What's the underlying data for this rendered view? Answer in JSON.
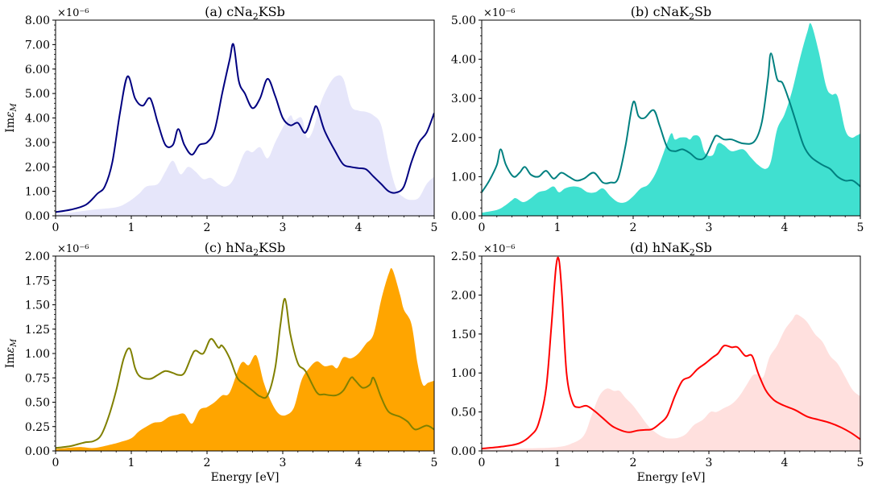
{
  "chart_data": [
    {
      "type": "line",
      "panel": "a",
      "title": "(a) cNa2KSb",
      "title_parts": [
        "(a) cNa",
        "2",
        "KSb"
      ],
      "xlabel": "",
      "ylabel": "Imε_M",
      "ylabel_parts": [
        "Im",
        "ε",
        "M"
      ],
      "offset_text": "×10⁻⁶",
      "xlim": [
        0,
        5
      ],
      "ylim": [
        0,
        8
      ],
      "xticks": [
        0,
        1,
        2,
        3,
        4,
        5
      ],
      "xtick_labels": [
        "0",
        "1",
        "2",
        "3",
        "4",
        "5"
      ],
      "yticks": [
        0,
        1,
        2,
        3,
        4,
        5,
        6,
        7,
        8
      ],
      "ytick_labels": [
        "0.00",
        "1.00",
        "2.00",
        "3.00",
        "4.00",
        "5.00",
        "6.00",
        "7.00",
        "8.00"
      ],
      "line_color": "#000080",
      "fill_color": "#e6e6fa",
      "series": [
        {
          "name": "line",
          "style": "line",
          "x": [
            0,
            0.2,
            0.4,
            0.55,
            0.65,
            0.75,
            0.85,
            0.95,
            1.05,
            1.15,
            1.25,
            1.35,
            1.45,
            1.55,
            1.62,
            1.7,
            1.8,
            1.9,
            2.0,
            2.1,
            2.2,
            2.3,
            2.35,
            2.42,
            2.5,
            2.6,
            2.7,
            2.8,
            2.9,
            3.0,
            3.1,
            3.2,
            3.3,
            3.4,
            3.45,
            3.55,
            3.7,
            3.8,
            3.9,
            4.0,
            4.1,
            4.2,
            4.3,
            4.4,
            4.5,
            4.6,
            4.7,
            4.8,
            4.9,
            5.0
          ],
          "y": [
            0.15,
            0.25,
            0.45,
            0.9,
            1.2,
            2.2,
            4.2,
            5.7,
            4.8,
            4.5,
            4.8,
            3.8,
            2.9,
            2.9,
            3.55,
            2.9,
            2.5,
            2.9,
            3.0,
            3.5,
            5.0,
            6.4,
            7.0,
            5.5,
            5.0,
            4.4,
            4.8,
            5.6,
            4.9,
            4.0,
            3.7,
            3.8,
            3.4,
            4.2,
            4.45,
            3.5,
            2.6,
            2.1,
            2.0,
            1.95,
            1.9,
            1.6,
            1.3,
            1.0,
            0.95,
            1.2,
            2.2,
            3.0,
            3.4,
            4.2
          ]
        },
        {
          "name": "fill",
          "style": "area",
          "x": [
            0,
            0.5,
            0.8,
            0.95,
            1.1,
            1.2,
            1.35,
            1.45,
            1.55,
            1.65,
            1.75,
            1.85,
            1.95,
            2.05,
            2.15,
            2.25,
            2.35,
            2.5,
            2.6,
            2.7,
            2.8,
            2.9,
            3.0,
            3.1,
            3.15,
            3.25,
            3.32,
            3.4,
            3.5,
            3.6,
            3.7,
            3.8,
            3.9,
            4.0,
            4.1,
            4.2,
            4.3,
            4.4,
            4.5,
            4.6,
            4.7,
            4.8,
            4.9,
            5.0
          ],
          "y": [
            0.05,
            0.25,
            0.35,
            0.55,
            0.9,
            1.2,
            1.3,
            1.8,
            2.25,
            1.7,
            2.0,
            1.8,
            1.5,
            1.55,
            1.3,
            1.2,
            1.5,
            2.6,
            2.6,
            2.8,
            2.35,
            3.0,
            3.6,
            4.1,
            3.9,
            4.0,
            3.2,
            3.5,
            4.6,
            5.3,
            5.7,
            5.6,
            4.5,
            4.3,
            4.25,
            4.1,
            3.7,
            2.2,
            1.1,
            0.75,
            0.65,
            0.75,
            1.3,
            1.6
          ]
        }
      ]
    },
    {
      "type": "line",
      "panel": "b",
      "title": "(b) cNaK2Sb",
      "title_parts": [
        "(b) cNaK",
        "2",
        "Sb"
      ],
      "xlabel": "",
      "ylabel": "",
      "offset_text": "×10⁻⁶",
      "xlim": [
        0,
        5
      ],
      "ylim": [
        0,
        5
      ],
      "xticks": [
        0,
        1,
        2,
        3,
        4,
        5
      ],
      "xtick_labels": [
        "0",
        "1",
        "2",
        "3",
        "4",
        "5"
      ],
      "yticks": [
        0,
        1,
        2,
        3,
        4,
        5
      ],
      "ytick_labels": [
        "0.00",
        "1.00",
        "2.00",
        "3.00",
        "4.00",
        "5.00"
      ],
      "line_color": "#008080",
      "fill_color": "#40e0d0",
      "series": [
        {
          "name": "line",
          "style": "line",
          "x": [
            0,
            0.1,
            0.2,
            0.25,
            0.32,
            0.42,
            0.5,
            0.57,
            0.65,
            0.75,
            0.85,
            0.95,
            1.05,
            1.15,
            1.25,
            1.35,
            1.48,
            1.6,
            1.7,
            1.8,
            1.9,
            2.0,
            2.07,
            2.15,
            2.27,
            2.35,
            2.45,
            2.55,
            2.65,
            2.75,
            2.85,
            2.95,
            3.05,
            3.1,
            3.2,
            3.3,
            3.45,
            3.6,
            3.7,
            3.78,
            3.82,
            3.9,
            3.97,
            4.05,
            4.15,
            4.25,
            4.35,
            4.5,
            4.6,
            4.7,
            4.8,
            4.9,
            5.0
          ],
          "y": [
            0.6,
            0.9,
            1.3,
            1.7,
            1.3,
            1.0,
            1.1,
            1.25,
            1.05,
            1.0,
            1.15,
            0.95,
            1.1,
            1.0,
            0.9,
            0.95,
            1.1,
            0.85,
            0.85,
            0.95,
            1.8,
            2.9,
            2.55,
            2.5,
            2.7,
            2.3,
            1.75,
            1.65,
            1.7,
            1.6,
            1.45,
            1.5,
            1.9,
            2.05,
            1.95,
            1.95,
            1.85,
            1.9,
            2.4,
            3.5,
            4.15,
            3.5,
            3.4,
            3.0,
            2.4,
            1.8,
            1.5,
            1.3,
            1.2,
            1.0,
            0.9,
            0.9,
            0.75
          ]
        },
        {
          "name": "fill",
          "style": "area",
          "x": [
            0,
            0.2,
            0.3,
            0.4,
            0.45,
            0.55,
            0.65,
            0.75,
            0.85,
            0.95,
            1.02,
            1.1,
            1.2,
            1.3,
            1.4,
            1.5,
            1.6,
            1.7,
            1.8,
            1.9,
            2.0,
            2.1,
            2.2,
            2.3,
            2.4,
            2.5,
            2.55,
            2.62,
            2.7,
            2.75,
            2.8,
            2.88,
            2.95,
            3.05,
            3.12,
            3.2,
            3.3,
            3.45,
            3.55,
            3.65,
            3.75,
            3.82,
            3.9,
            4.0,
            4.1,
            4.2,
            4.3,
            4.35,
            4.45,
            4.55,
            4.62,
            4.7,
            4.8,
            4.88,
            4.95,
            5.0
          ],
          "y": [
            0.08,
            0.15,
            0.25,
            0.4,
            0.45,
            0.35,
            0.45,
            0.6,
            0.65,
            0.75,
            0.6,
            0.7,
            0.75,
            0.72,
            0.6,
            0.6,
            0.7,
            0.5,
            0.35,
            0.35,
            0.5,
            0.7,
            0.8,
            1.1,
            1.6,
            2.1,
            1.95,
            2.0,
            2.0,
            1.95,
            2.05,
            2.0,
            1.6,
            1.55,
            1.85,
            1.8,
            1.65,
            1.7,
            1.5,
            1.3,
            1.2,
            1.4,
            2.2,
            2.6,
            3.2,
            4.0,
            4.7,
            4.9,
            4.2,
            3.3,
            3.1,
            3.05,
            2.2,
            2.0,
            2.05,
            2.1
          ]
        }
      ]
    },
    {
      "type": "line",
      "panel": "c",
      "title": "(c) hNa2KSb",
      "title_parts": [
        "(c) hNa",
        "2",
        "KSb"
      ],
      "xlabel": "Energy [eV]",
      "ylabel": "Imε_M",
      "ylabel_parts": [
        "Im",
        "ε",
        "M"
      ],
      "offset_text": "×10⁻⁶",
      "xlim": [
        0,
        5
      ],
      "ylim": [
        0,
        2
      ],
      "xticks": [
        0,
        1,
        2,
        3,
        4,
        5
      ],
      "xtick_labels": [
        "0",
        "1",
        "2",
        "3",
        "4",
        "5"
      ],
      "yticks": [
        0,
        0.25,
        0.5,
        0.75,
        1.0,
        1.25,
        1.5,
        1.75,
        2.0
      ],
      "ytick_labels": [
        "0.00",
        "0.25",
        "0.50",
        "0.75",
        "1.00",
        "1.25",
        "1.50",
        "1.75",
        "2.00"
      ],
      "line_color": "#808000",
      "fill_color": "#ffa500",
      "series": [
        {
          "name": "line",
          "style": "line",
          "x": [
            0,
            0.2,
            0.3,
            0.4,
            0.5,
            0.6,
            0.7,
            0.8,
            0.9,
            0.98,
            1.05,
            1.12,
            1.25,
            1.35,
            1.45,
            1.55,
            1.62,
            1.7,
            1.8,
            1.85,
            1.95,
            2.05,
            2.15,
            2.2,
            2.3,
            2.4,
            2.5,
            2.6,
            2.7,
            2.8,
            2.9,
            2.97,
            3.03,
            3.1,
            3.2,
            3.3,
            3.45,
            3.55,
            3.7,
            3.8,
            3.9,
            3.95,
            4.05,
            4.15,
            4.2,
            4.3,
            4.4,
            4.55,
            4.65,
            4.75,
            4.9,
            5.0
          ],
          "y": [
            0.03,
            0.05,
            0.07,
            0.09,
            0.1,
            0.16,
            0.35,
            0.62,
            0.95,
            1.05,
            0.85,
            0.76,
            0.74,
            0.78,
            0.82,
            0.8,
            0.78,
            0.8,
            0.98,
            1.03,
            1.0,
            1.15,
            1.06,
            1.08,
            0.95,
            0.75,
            0.68,
            0.62,
            0.56,
            0.57,
            0.85,
            1.3,
            1.56,
            1.2,
            0.9,
            0.82,
            0.6,
            0.58,
            0.57,
            0.62,
            0.75,
            0.73,
            0.65,
            0.68,
            0.75,
            0.55,
            0.4,
            0.35,
            0.3,
            0.22,
            0.26,
            0.22
          ]
        },
        {
          "name": "fill",
          "style": "area",
          "x": [
            0,
            0.3,
            0.5,
            0.7,
            0.85,
            1.0,
            1.1,
            1.2,
            1.3,
            1.4,
            1.5,
            1.6,
            1.7,
            1.8,
            1.9,
            2.0,
            2.1,
            2.2,
            2.3,
            2.45,
            2.55,
            2.65,
            2.75,
            2.85,
            2.95,
            3.05,
            3.15,
            3.25,
            3.35,
            3.45,
            3.55,
            3.65,
            3.72,
            3.8,
            3.9,
            4.0,
            4.1,
            4.2,
            4.3,
            4.4,
            4.45,
            4.55,
            4.6,
            4.7,
            4.78,
            4.85,
            4.92,
            5.0
          ],
          "y": [
            0.02,
            0.04,
            0.03,
            0.06,
            0.09,
            0.13,
            0.2,
            0.25,
            0.29,
            0.3,
            0.35,
            0.37,
            0.38,
            0.28,
            0.42,
            0.45,
            0.5,
            0.57,
            0.6,
            0.9,
            0.88,
            0.98,
            0.7,
            0.5,
            0.38,
            0.37,
            0.45,
            0.73,
            0.85,
            0.92,
            0.87,
            0.88,
            0.85,
            0.96,
            0.95,
            1.0,
            1.1,
            1.2,
            1.55,
            1.82,
            1.86,
            1.6,
            1.45,
            1.3,
            0.9,
            0.68,
            0.7,
            0.72
          ]
        }
      ]
    },
    {
      "type": "line",
      "panel": "d",
      "title": "(d) hNaK2Sb",
      "title_parts": [
        "(d) hNaK",
        "2",
        "Sb"
      ],
      "xlabel": "Energy [eV]",
      "ylabel": "",
      "offset_text": "×10⁻⁶",
      "xlim": [
        0,
        5
      ],
      "ylim": [
        0,
        2.5
      ],
      "xticks": [
        0,
        1,
        2,
        3,
        4,
        5
      ],
      "xtick_labels": [
        "0",
        "1",
        "2",
        "3",
        "4",
        "5"
      ],
      "yticks": [
        0,
        0.5,
        1.0,
        1.5,
        2.0,
        2.5
      ],
      "ytick_labels": [
        "0.00",
        "0.50",
        "1.00",
        "1.50",
        "2.00",
        "2.50"
      ],
      "line_color": "#ff0000",
      "fill_color": "#ffe0de",
      "series": [
        {
          "name": "line",
          "style": "line",
          "x": [
            0,
            0.3,
            0.5,
            0.65,
            0.75,
            0.85,
            0.92,
            0.98,
            1.02,
            1.06,
            1.12,
            1.2,
            1.28,
            1.38,
            1.48,
            1.6,
            1.72,
            1.85,
            1.95,
            2.05,
            2.15,
            2.25,
            2.35,
            2.45,
            2.55,
            2.65,
            2.75,
            2.85,
            2.95,
            3.05,
            3.12,
            3.2,
            3.3,
            3.38,
            3.48,
            3.57,
            3.65,
            3.75,
            3.85,
            3.95,
            4.05,
            4.15,
            4.3,
            4.45,
            4.6,
            4.75,
            4.88,
            5.0
          ],
          "y": [
            0.03,
            0.06,
            0.1,
            0.2,
            0.35,
            0.8,
            1.6,
            2.35,
            2.45,
            2.0,
            1.0,
            0.62,
            0.56,
            0.58,
            0.52,
            0.42,
            0.32,
            0.26,
            0.24,
            0.26,
            0.27,
            0.28,
            0.35,
            0.45,
            0.7,
            0.9,
            0.95,
            1.05,
            1.12,
            1.2,
            1.25,
            1.35,
            1.33,
            1.33,
            1.22,
            1.22,
            1.0,
            0.78,
            0.66,
            0.6,
            0.56,
            0.52,
            0.44,
            0.4,
            0.36,
            0.3,
            0.23,
            0.15
          ]
        },
        {
          "name": "fill",
          "style": "area",
          "x": [
            0,
            0.5,
            1.0,
            1.2,
            1.35,
            1.45,
            1.55,
            1.65,
            1.75,
            1.82,
            1.9,
            2.0,
            2.1,
            2.2,
            2.32,
            2.42,
            2.5,
            2.6,
            2.7,
            2.8,
            2.92,
            3.02,
            3.1,
            3.2,
            3.3,
            3.4,
            3.5,
            3.58,
            3.65,
            3.72,
            3.8,
            3.9,
            4.0,
            4.1,
            4.15,
            4.22,
            4.3,
            4.4,
            4.5,
            4.6,
            4.7,
            4.8,
            4.9,
            5.0
          ],
          "y": [
            0.02,
            0.03,
            0.05,
            0.1,
            0.2,
            0.45,
            0.7,
            0.8,
            0.77,
            0.77,
            0.68,
            0.58,
            0.45,
            0.32,
            0.22,
            0.17,
            0.16,
            0.17,
            0.22,
            0.33,
            0.4,
            0.5,
            0.5,
            0.55,
            0.6,
            0.7,
            0.85,
            0.97,
            0.98,
            0.95,
            1.2,
            1.35,
            1.55,
            1.68,
            1.75,
            1.72,
            1.65,
            1.5,
            1.4,
            1.22,
            1.12,
            0.95,
            0.78,
            0.7
          ]
        }
      ]
    }
  ]
}
